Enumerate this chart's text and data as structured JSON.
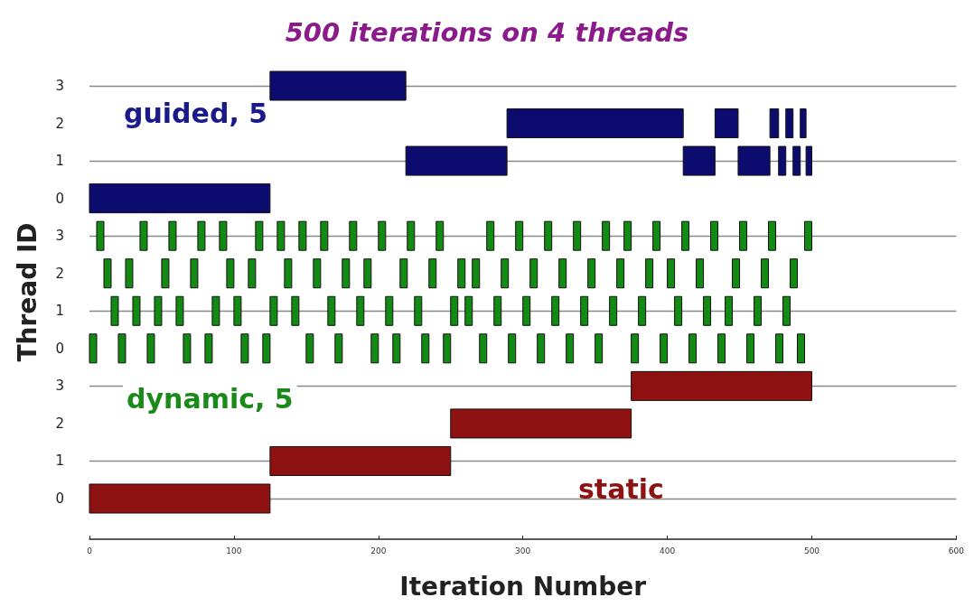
{
  "chart_data": {
    "type": "bar",
    "orientation": "horizontal",
    "title": "500 iterations on 4 threads",
    "xlabel": "Iteration Number",
    "ylabel": "Thread ID",
    "annotations": [
      "guided, 5",
      "dynamic, 5",
      "static"
    ],
    "categories": [
      "3",
      "2",
      "1",
      "0",
      "3",
      "2",
      "1",
      "0",
      "3",
      "2",
      "1",
      "0"
    ],
    "xlim": [
      0,
      600
    ],
    "xticks": [
      0,
      100,
      200,
      300,
      400,
      500,
      600
    ],
    "grid": "y",
    "series": [
      {
        "color": "#0c0c6e",
        "base": [
          125,
          289,
          219,
          0,
          null,
          null,
          null,
          null,
          null,
          null,
          null,
          null
        ],
        "values": [
          94,
          122,
          70,
          125,
          null,
          null,
          null,
          null,
          null,
          null,
          null,
          null
        ]
      },
      {
        "color": "#0c0c6e",
        "base": [
          null,
          433,
          411,
          null,
          null,
          null,
          null,
          null,
          null,
          null,
          null,
          null
        ],
        "values": [
          null,
          16,
          22,
          null,
          null,
          null,
          null,
          null,
          null,
          null,
          null,
          null
        ]
      },
      {
        "color": "#0c0c6e",
        "base": [
          null,
          471,
          449,
          null,
          null,
          null,
          null,
          null,
          null,
          null,
          null,
          null
        ],
        "values": [
          null,
          6,
          22,
          null,
          null,
          null,
          null,
          null,
          null,
          null,
          null,
          null
        ]
      },
      {
        "color": "#0c0c6e",
        "base": [
          null,
          482,
          477,
          null,
          null,
          null,
          null,
          null,
          null,
          null,
          null,
          null
        ],
        "values": [
          null,
          5,
          5,
          null,
          null,
          null,
          null,
          null,
          null,
          null,
          null,
          null
        ]
      },
      {
        "color": "#0c0c6e",
        "base": [
          null,
          492,
          487,
          null,
          null,
          null,
          null,
          null,
          null,
          null,
          null,
          null
        ],
        "values": [
          null,
          4,
          5,
          null,
          null,
          null,
          null,
          null,
          null,
          null,
          null,
          null
        ]
      },
      {
        "color": "#0c0c6e",
        "base": [
          null,
          null,
          496,
          null,
          null,
          null,
          null,
          null,
          null,
          null,
          null,
          null
        ],
        "values": [
          null,
          null,
          4,
          null,
          null,
          null,
          null,
          null,
          null,
          null,
          null,
          null
        ]
      },
      {
        "color": "#138a13",
        "base": [
          null,
          null,
          null,
          null,
          5,
          10,
          15,
          0,
          null,
          null,
          null,
          null
        ],
        "values": [
          null,
          null,
          null,
          null,
          5,
          5,
          5,
          5,
          null,
          null,
          null,
          null
        ]
      },
      {
        "color": "#138a13",
        "base": [
          null,
          null,
          null,
          null,
          35,
          25,
          30,
          20,
          null,
          null,
          null,
          null
        ],
        "values": [
          null,
          null,
          null,
          null,
          5,
          5,
          5,
          5,
          null,
          null,
          null,
          null
        ]
      },
      {
        "color": "#138a13",
        "base": [
          null,
          null,
          null,
          null,
          55,
          50,
          45,
          40,
          null,
          null,
          null,
          null
        ],
        "values": [
          null,
          null,
          null,
          null,
          5,
          5,
          5,
          5,
          null,
          null,
          null,
          null
        ]
      },
      {
        "color": "#138a13",
        "base": [
          null,
          null,
          null,
          null,
          75,
          70,
          60,
          65,
          null,
          null,
          null,
          null
        ],
        "values": [
          null,
          null,
          null,
          null,
          5,
          5,
          5,
          5,
          null,
          null,
          null,
          null
        ]
      },
      {
        "color": "#138a13",
        "base": [
          null,
          null,
          null,
          null,
          90,
          95,
          85,
          80,
          null,
          null,
          null,
          null
        ],
        "values": [
          null,
          null,
          null,
          null,
          5,
          5,
          5,
          5,
          null,
          null,
          null,
          null
        ]
      },
      {
        "color": "#138a13",
        "base": [
          null,
          null,
          null,
          null,
          115,
          110,
          100,
          105,
          null,
          null,
          null,
          null
        ],
        "values": [
          null,
          null,
          null,
          null,
          5,
          5,
          5,
          5,
          null,
          null,
          null,
          null
        ]
      },
      {
        "color": "#138a13",
        "base": [
          null,
          null,
          null,
          null,
          130,
          135,
          125,
          120,
          null,
          null,
          null,
          null
        ],
        "values": [
          null,
          null,
          null,
          null,
          5,
          5,
          5,
          5,
          null,
          null,
          null,
          null
        ]
      },
      {
        "color": "#138a13",
        "base": [
          null,
          null,
          null,
          null,
          145,
          155,
          140,
          150,
          null,
          null,
          null,
          null
        ],
        "values": [
          null,
          null,
          null,
          null,
          5,
          5,
          5,
          5,
          null,
          null,
          null,
          null
        ]
      },
      {
        "color": "#138a13",
        "base": [
          null,
          null,
          null,
          null,
          160,
          175,
          165,
          170,
          null,
          null,
          null,
          null
        ],
        "values": [
          null,
          null,
          null,
          null,
          5,
          5,
          5,
          5,
          null,
          null,
          null,
          null
        ]
      },
      {
        "color": "#138a13",
        "base": [
          null,
          null,
          null,
          null,
          180,
          190,
          185,
          195,
          null,
          null,
          null,
          null
        ],
        "values": [
          null,
          null,
          null,
          null,
          5,
          5,
          5,
          5,
          null,
          null,
          null,
          null
        ]
      },
      {
        "color": "#138a13",
        "base": [
          null,
          null,
          null,
          null,
          200,
          215,
          205,
          210,
          null,
          null,
          null,
          null
        ],
        "values": [
          null,
          null,
          null,
          null,
          5,
          5,
          5,
          5,
          null,
          null,
          null,
          null
        ]
      },
      {
        "color": "#138a13",
        "base": [
          null,
          null,
          null,
          null,
          220,
          235,
          225,
          230,
          null,
          null,
          null,
          null
        ],
        "values": [
          null,
          null,
          null,
          null,
          5,
          5,
          5,
          5,
          null,
          null,
          null,
          null
        ]
      },
      {
        "color": "#138a13",
        "base": [
          null,
          null,
          null,
          null,
          240,
          255,
          250,
          245,
          null,
          null,
          null,
          null
        ],
        "values": [
          null,
          null,
          null,
          null,
          5,
          5,
          5,
          5,
          null,
          null,
          null,
          null
        ]
      },
      {
        "color": "#138a13",
        "base": [
          null,
          null,
          null,
          null,
          275,
          265,
          260,
          270,
          null,
          null,
          null,
          null
        ],
        "values": [
          null,
          null,
          null,
          null,
          5,
          5,
          5,
          5,
          null,
          null,
          null,
          null
        ]
      },
      {
        "color": "#138a13",
        "base": [
          null,
          null,
          null,
          null,
          295,
          285,
          280,
          290,
          null,
          null,
          null,
          null
        ],
        "values": [
          null,
          null,
          null,
          null,
          5,
          5,
          5,
          5,
          null,
          null,
          null,
          null
        ]
      },
      {
        "color": "#138a13",
        "base": [
          null,
          null,
          null,
          null,
          315,
          305,
          300,
          310,
          null,
          null,
          null,
          null
        ],
        "values": [
          null,
          null,
          null,
          null,
          5,
          5,
          5,
          5,
          null,
          null,
          null,
          null
        ]
      },
      {
        "color": "#138a13",
        "base": [
          null,
          null,
          null,
          null,
          335,
          325,
          320,
          330,
          null,
          null,
          null,
          null
        ],
        "values": [
          null,
          null,
          null,
          null,
          5,
          5,
          5,
          5,
          null,
          null,
          null,
          null
        ]
      },
      {
        "color": "#138a13",
        "base": [
          null,
          null,
          null,
          null,
          355,
          345,
          340,
          350,
          null,
          null,
          null,
          null
        ],
        "values": [
          null,
          null,
          null,
          null,
          5,
          5,
          5,
          5,
          null,
          null,
          null,
          null
        ]
      },
      {
        "color": "#138a13",
        "base": [
          null,
          null,
          null,
          null,
          370,
          365,
          360,
          375,
          null,
          null,
          null,
          null
        ],
        "values": [
          null,
          null,
          null,
          null,
          5,
          5,
          5,
          5,
          null,
          null,
          null,
          null
        ]
      },
      {
        "color": "#138a13",
        "base": [
          null,
          null,
          null,
          null,
          390,
          385,
          380,
          395,
          null,
          null,
          null,
          null
        ],
        "values": [
          null,
          null,
          null,
          null,
          5,
          5,
          5,
          5,
          null,
          null,
          null,
          null
        ]
      },
      {
        "color": "#138a13",
        "base": [
          null,
          null,
          null,
          null,
          410,
          400,
          405,
          415,
          null,
          null,
          null,
          null
        ],
        "values": [
          null,
          null,
          null,
          null,
          5,
          5,
          5,
          5,
          null,
          null,
          null,
          null
        ]
      },
      {
        "color": "#138a13",
        "base": [
          null,
          null,
          null,
          null,
          430,
          420,
          425,
          435,
          null,
          null,
          null,
          null
        ],
        "values": [
          null,
          null,
          null,
          null,
          5,
          5,
          5,
          5,
          null,
          null,
          null,
          null
        ]
      },
      {
        "color": "#138a13",
        "base": [
          null,
          null,
          null,
          null,
          450,
          445,
          440,
          455,
          null,
          null,
          null,
          null
        ],
        "values": [
          null,
          null,
          null,
          null,
          5,
          5,
          5,
          5,
          null,
          null,
          null,
          null
        ]
      },
      {
        "color": "#138a13",
        "base": [
          null,
          null,
          null,
          null,
          470,
          465,
          460,
          475,
          null,
          null,
          null,
          null
        ],
        "values": [
          null,
          null,
          null,
          null,
          5,
          5,
          5,
          5,
          null,
          null,
          null,
          null
        ]
      },
      {
        "color": "#138a13",
        "base": [
          null,
          null,
          null,
          null,
          495,
          485,
          480,
          490,
          null,
          null,
          null,
          null
        ],
        "values": [
          null,
          null,
          null,
          null,
          5,
          5,
          5,
          5,
          null,
          null,
          null,
          null
        ]
      },
      {
        "color": "#8e1212",
        "base": [
          null,
          null,
          null,
          null,
          null,
          null,
          null,
          null,
          375,
          250,
          125,
          0
        ],
        "values": [
          null,
          null,
          null,
          null,
          null,
          null,
          null,
          null,
          125,
          125,
          125,
          125
        ]
      }
    ]
  }
}
